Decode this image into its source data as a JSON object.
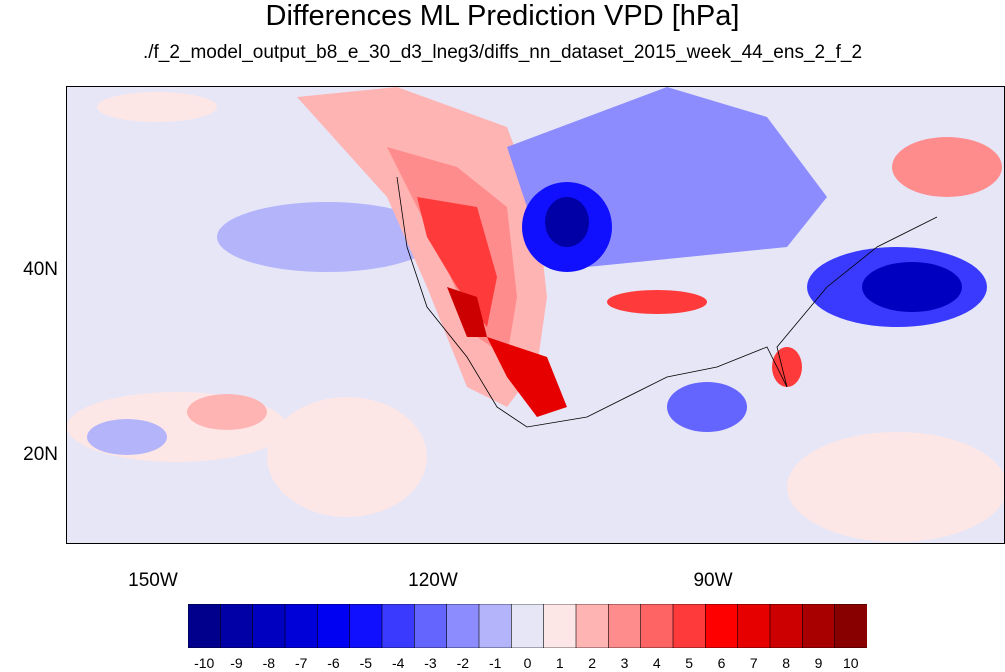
{
  "map": {
    "title": "Differences ML Prediction VPD [hPa]",
    "subtitle": "./f_2_model_output_b8_e_30_d3_lneg3/diffs_nn_dataset_2015_week_44_ens_2_f_2",
    "y_axis_labels": [
      "40N",
      "20N"
    ],
    "x_axis_labels": [
      "150W",
      "120W",
      "90W"
    ],
    "extent": {
      "lon": [
        -160,
        -60
      ],
      "lat": [
        10,
        59
      ]
    },
    "colorbar_labels": [
      "-10",
      "-9",
      "-8",
      "-7",
      "-6",
      "-5",
      "-4",
      "-3",
      "-2",
      "-1",
      "0",
      "1",
      "2",
      "3",
      "4",
      "5",
      "6",
      "7",
      "8",
      "9",
      "10"
    ],
    "colorbar_colors": [
      "#00008c",
      "#0000a6",
      "#0000c0",
      "#0000d9",
      "#0000f2",
      "#1010ff",
      "#3a3aff",
      "#6464ff",
      "#8c8cff",
      "#b4b4fb",
      "#e6e6f7",
      "#fde6e6",
      "#ffb4b4",
      "#ff8c8c",
      "#ff6464",
      "#ff3a3a",
      "#ff0000",
      "#e60000",
      "#cc0000",
      "#a80000",
      "#880000"
    ],
    "background_color": "#e6e6f7"
  }
}
